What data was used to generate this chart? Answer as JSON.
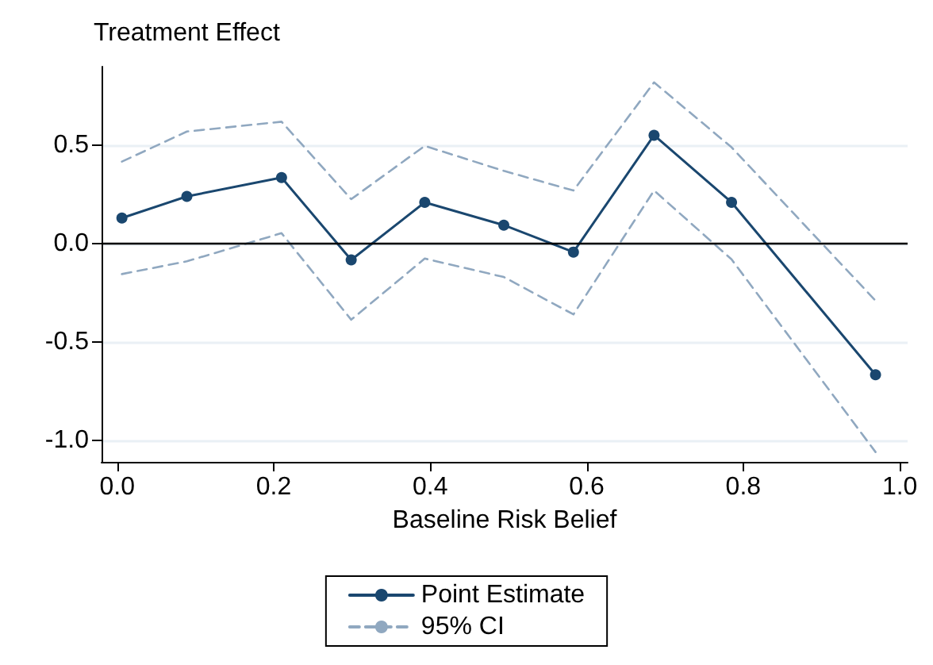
{
  "chart_data": {
    "type": "line",
    "ylabel": "Treatment Effect",
    "xlabel": "Baseline Risk Belief",
    "x": [
      0.006,
      0.089,
      0.21,
      0.299,
      0.393,
      0.494,
      0.583,
      0.686,
      0.785,
      0.969
    ],
    "series": [
      {
        "name": "Point Estimate",
        "color": "#1a476f",
        "marker": "circle",
        "line_style": "solid",
        "values": [
          0.13,
          0.24,
          0.336,
          -0.083,
          0.21,
          0.094,
          -0.043,
          0.551,
          0.21,
          -0.667
        ]
      },
      {
        "name": "95% CI",
        "color": "#90a8c0",
        "marker": "none",
        "line_style": "dashed",
        "values": [
          0.417,
          0.57,
          0.62,
          0.226,
          0.497,
          0.37,
          0.27,
          0.82,
          0.49,
          -0.29
        ]
      },
      {
        "color": "#90a8c0",
        "marker": "none",
        "line_style": "dashed",
        "values": [
          -0.155,
          -0.09,
          0.053,
          -0.387,
          -0.076,
          -0.17,
          -0.36,
          0.27,
          -0.08,
          -1.06
        ]
      }
    ],
    "xlim": [
      -0.02,
      1.01
    ],
    "xticks": [
      {
        "value": 0,
        "label": "0.0"
      },
      0.2,
      0.4,
      0.6,
      0.8,
      {
        "value": 1,
        "label": "1.0"
      }
    ],
    "ylim": [
      -1.11,
      0.9
    ],
    "yticks": [
      {
        "value": -1,
        "label": "-1.0"
      },
      -0.5,
      {
        "value": 0,
        "label": "0.0"
      },
      0.5
    ],
    "grid": "y",
    "legend": "bottom",
    "ref_lines": [
      {
        "axis": "y",
        "value": 0,
        "color": "#000000",
        "line_style": "solid"
      }
    ]
  }
}
